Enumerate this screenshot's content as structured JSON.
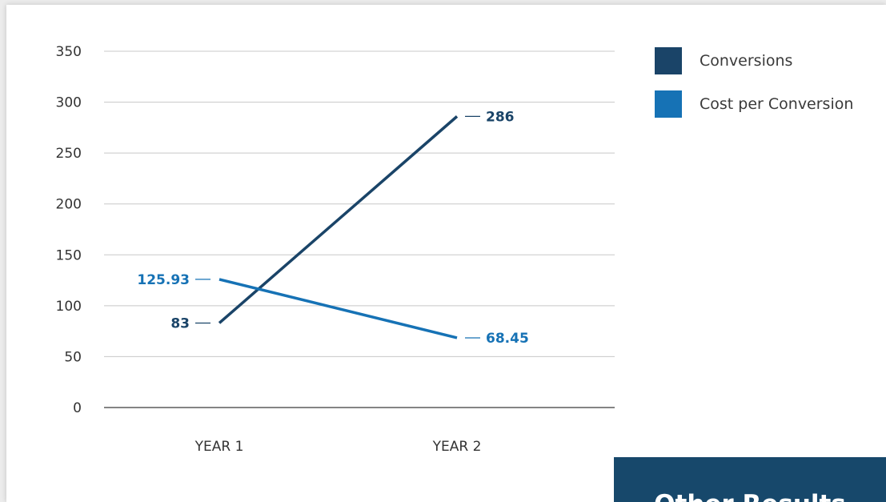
{
  "chart_data": {
    "type": "line",
    "categories": [
      "YEAR 1",
      "YEAR 2"
    ],
    "series": [
      {
        "name": "Conversions",
        "values": [
          83,
          286
        ],
        "labels": [
          "83",
          "286"
        ],
        "color": "#1a4468"
      },
      {
        "name": "Cost per Conversion",
        "values": [
          125.93,
          68.45
        ],
        "labels": [
          "125.93",
          "68.45"
        ],
        "color": "#1672b5"
      }
    ],
    "ylim": [
      0,
      350
    ],
    "yticks": [
      0,
      50,
      100,
      150,
      200,
      250,
      300,
      350
    ],
    "grid": true,
    "legend_position": "top-right"
  },
  "results_banner": {
    "title": "Other Results"
  }
}
